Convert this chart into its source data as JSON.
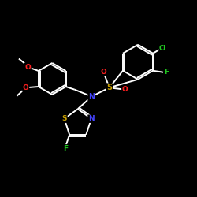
{
  "bg_color": "#000000",
  "bond_color": "#ffffff",
  "atom_colors": {
    "N": "#4444ff",
    "O": "#ff2020",
    "S": "#c8a000",
    "F": "#20c820",
    "Cl": "#20c820"
  },
  "figsize": [
    2.5,
    2.5
  ],
  "dpi": 100
}
